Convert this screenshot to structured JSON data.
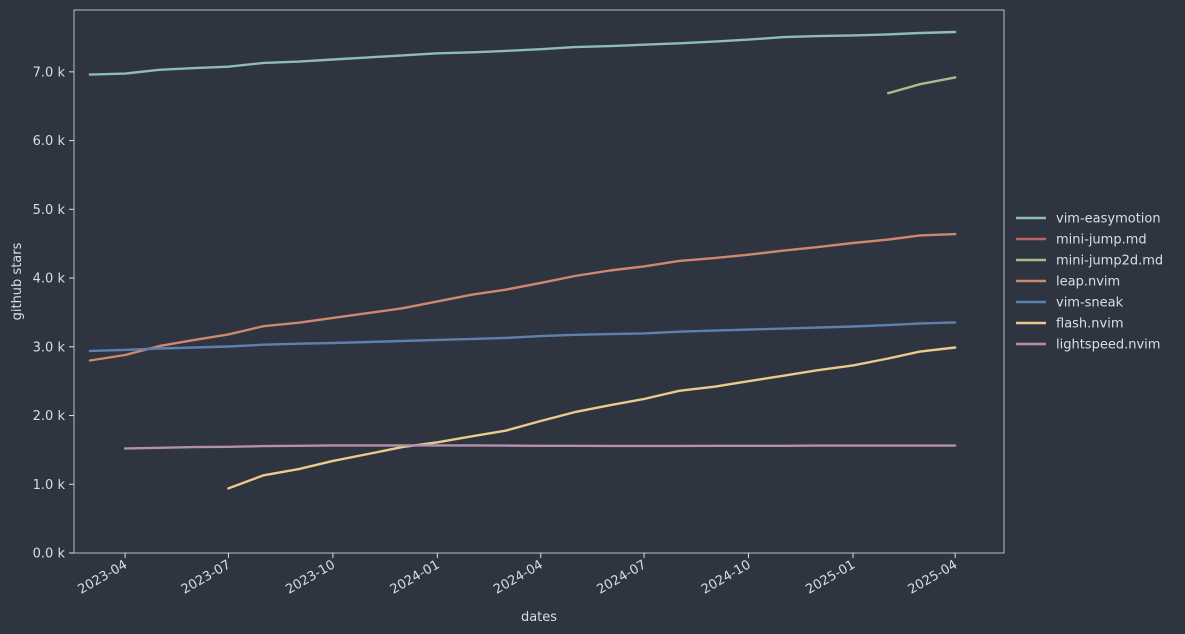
{
  "chart_data": {
    "type": "line",
    "title": "",
    "xlabel": "dates",
    "ylabel": "github stars",
    "x_ticks": [
      "2023-04",
      "2023-07",
      "2023-10",
      "2024-01",
      "2024-04",
      "2024-07",
      "2024-10",
      "2025-01",
      "2025-04"
    ],
    "y_ticks": [
      "0.0 k",
      "1.0 k",
      "2.0 k",
      "3.0 k",
      "4.0 k",
      "5.0 k",
      "6.0 k",
      "7.0 k"
    ],
    "xlim": [
      "2023-02-15",
      "2025-05-14"
    ],
    "ylim": [
      0,
      7900
    ],
    "grid": false,
    "legend_position": "right",
    "background": "#2e3440",
    "axis_color": "#d8dee9",
    "series": [
      {
        "name": "vim-easymotion",
        "color": "#8fbcbb",
        "x": [
          "2023-03-01",
          "2023-04-01",
          "2023-05-01",
          "2023-06-01",
          "2023-07-01",
          "2023-08-01",
          "2023-09-01",
          "2023-10-01",
          "2023-11-01",
          "2023-12-01",
          "2024-01-01",
          "2024-02-01",
          "2024-03-01",
          "2024-04-01",
          "2024-05-01",
          "2024-06-01",
          "2024-07-01",
          "2024-08-01",
          "2024-09-01",
          "2024-10-01",
          "2024-11-01",
          "2024-12-01",
          "2025-01-01",
          "2025-02-01",
          "2025-03-01",
          "2025-04-01"
        ],
        "y": [
          6960,
          6975,
          7030,
          7055,
          7075,
          7130,
          7150,
          7180,
          7210,
          7240,
          7270,
          7285,
          7305,
          7330,
          7360,
          7375,
          7395,
          7415,
          7440,
          7470,
          7505,
          7520,
          7530,
          7545,
          7565,
          7580
        ]
      },
      {
        "name": "mini-jump.md",
        "color": "#bf616a",
        "x": [],
        "y": []
      },
      {
        "name": "mini-jump2d.md",
        "color": "#a3be8c",
        "x": [
          "2025-02-01",
          "2025-03-01",
          "2025-04-01"
        ],
        "y": [
          6690,
          6820,
          6920
        ]
      },
      {
        "name": "leap.nvim",
        "color": "#d08770",
        "x": [
          "2023-03-01",
          "2023-04-01",
          "2023-05-01",
          "2023-06-01",
          "2023-07-01",
          "2023-08-01",
          "2023-09-01",
          "2023-10-01",
          "2023-11-01",
          "2023-12-01",
          "2024-01-01",
          "2024-02-01",
          "2024-03-01",
          "2024-04-01",
          "2024-05-01",
          "2024-06-01",
          "2024-07-01",
          "2024-08-01",
          "2024-09-01",
          "2024-10-01",
          "2024-11-01",
          "2024-12-01",
          "2025-01-01",
          "2025-02-01",
          "2025-03-01",
          "2025-04-01"
        ],
        "y": [
          2800,
          2880,
          3010,
          3100,
          3180,
          3300,
          3350,
          3420,
          3490,
          3560,
          3660,
          3760,
          3830,
          3930,
          4030,
          4110,
          4170,
          4250,
          4290,
          4340,
          4400,
          4450,
          4510,
          4560,
          4620,
          4640
        ]
      },
      {
        "name": "vim-sneak",
        "color": "#5e81ac",
        "x": [
          "2023-03-01",
          "2023-04-01",
          "2023-05-01",
          "2023-06-01",
          "2023-07-01",
          "2023-08-01",
          "2023-09-01",
          "2023-10-01",
          "2023-11-01",
          "2023-12-01",
          "2024-01-01",
          "2024-02-01",
          "2024-03-01",
          "2024-04-01",
          "2024-05-01",
          "2024-06-01",
          "2024-07-01",
          "2024-08-01",
          "2024-09-01",
          "2024-10-01",
          "2024-11-01",
          "2024-12-01",
          "2025-01-01",
          "2025-02-01",
          "2025-03-01",
          "2025-04-01"
        ],
        "y": [
          2940,
          2955,
          2975,
          2990,
          3005,
          3030,
          3045,
          3055,
          3070,
          3085,
          3100,
          3115,
          3130,
          3155,
          3175,
          3185,
          3195,
          3220,
          3235,
          3250,
          3265,
          3280,
          3295,
          3315,
          3340,
          3355
        ]
      },
      {
        "name": "flash.nvim",
        "color": "#ebcb8b",
        "x": [
          "2023-07-01",
          "2023-08-01",
          "2023-09-01",
          "2023-10-01",
          "2023-11-01",
          "2023-12-01",
          "2024-01-01",
          "2024-02-01",
          "2024-03-01",
          "2024-04-01",
          "2024-05-01",
          "2024-06-01",
          "2024-07-01",
          "2024-08-01",
          "2024-09-01",
          "2024-10-01",
          "2024-11-01",
          "2024-12-01",
          "2025-01-01",
          "2025-02-01",
          "2025-03-01",
          "2025-04-01"
        ],
        "y": [
          940,
          1130,
          1220,
          1340,
          1440,
          1540,
          1610,
          1700,
          1780,
          1920,
          2050,
          2150,
          2240,
          2360,
          2420,
          2500,
          2580,
          2660,
          2730,
          2830,
          2930,
          2990
        ]
      },
      {
        "name": "lightspeed.nvim",
        "color": "#b48ead",
        "x": [
          "2023-04-01",
          "2023-05-01",
          "2023-06-01",
          "2023-07-01",
          "2023-08-01",
          "2023-09-01",
          "2023-10-01",
          "2023-11-01",
          "2023-12-01",
          "2024-01-01",
          "2024-02-01",
          "2024-03-01",
          "2024-04-01",
          "2024-05-01",
          "2024-06-01",
          "2024-07-01",
          "2024-08-01",
          "2024-09-01",
          "2024-10-01",
          "2024-11-01",
          "2024-12-01",
          "2025-01-01",
          "2025-02-01",
          "2025-03-01",
          "2025-04-01"
        ],
        "y": [
          1520,
          1530,
          1540,
          1545,
          1555,
          1560,
          1565,
          1565,
          1565,
          1565,
          1565,
          1562,
          1560,
          1560,
          1558,
          1558,
          1558,
          1560,
          1560,
          1560,
          1562,
          1563,
          1563,
          1563,
          1563
        ]
      }
    ]
  }
}
